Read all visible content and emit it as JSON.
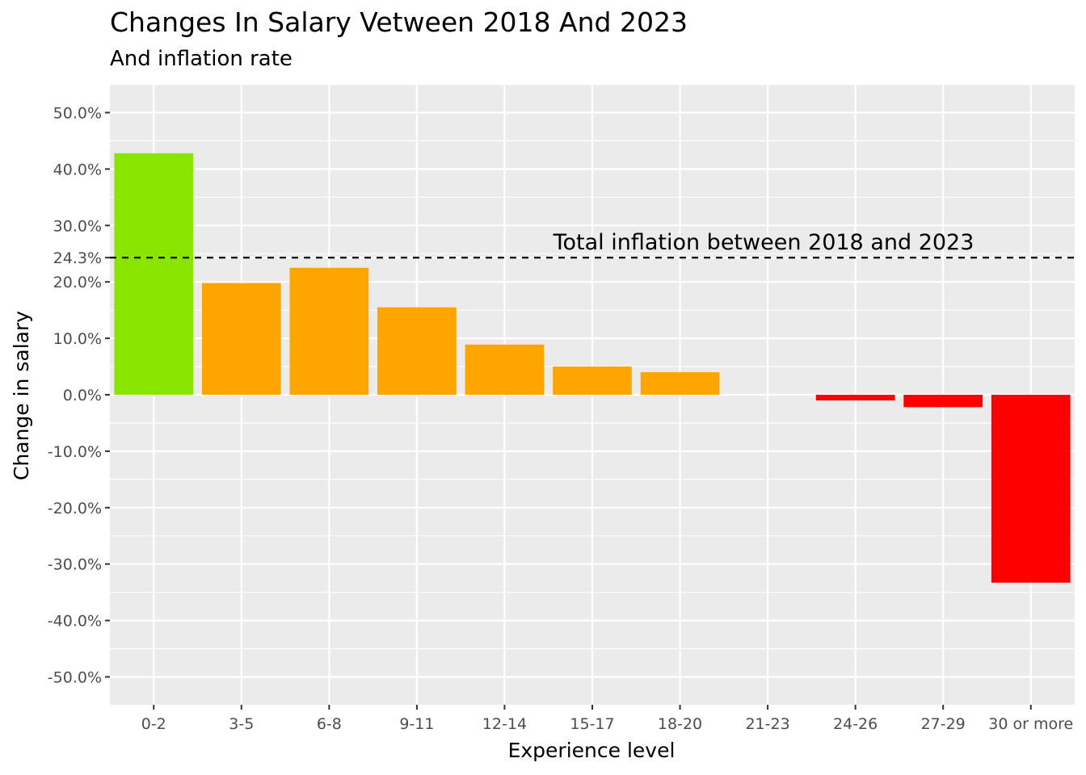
{
  "chart_data": {
    "type": "bar",
    "title": "Changes In Salary Vetween 2018 And 2023",
    "subtitle": "And inflation rate",
    "xlabel": "Experience level",
    "ylabel": "Change in salary",
    "ylim": [
      -55,
      55
    ],
    "grid": true,
    "legend": "none",
    "categories": [
      "0-2",
      "3-5",
      "6-8",
      "9-11",
      "12-14",
      "15-17",
      "18-20",
      "21-23",
      "24-26",
      "27-29",
      "30 or more"
    ],
    "values": [
      42.8,
      19.8,
      22.5,
      15.5,
      8.9,
      5.0,
      4.0,
      0.0,
      -1.0,
      -2.2,
      -33.3
    ],
    "bar_colors": [
      "#8ae600",
      "#ffa500",
      "#ffa500",
      "#ffa500",
      "#ffa500",
      "#ffa500",
      "#ffa500",
      "#ffa500",
      "#ff0000",
      "#ff0000",
      "#ff0000"
    ],
    "y_ticks": [
      {
        "value": 50,
        "label": "50.0%"
      },
      {
        "value": 40,
        "label": "40.0%"
      },
      {
        "value": 30,
        "label": "30.0%"
      },
      {
        "value": 24.3,
        "label": "24.3%"
      },
      {
        "value": 20,
        "label": "20.0%"
      },
      {
        "value": 10,
        "label": "10.0%"
      },
      {
        "value": 0,
        "label": "0.0%"
      },
      {
        "value": -10,
        "label": "-10.0%"
      },
      {
        "value": -20,
        "label": "-20.0%"
      },
      {
        "value": -30,
        "label": "-30.0%"
      },
      {
        "value": -40,
        "label": "-40.0%"
      },
      {
        "value": -50,
        "label": "-50.0%"
      }
    ],
    "reference_line": {
      "value": 24.3,
      "style": "dashed",
      "label": "Total inflation between 2018 and 2023"
    },
    "colors": {
      "panel_background": "#ebebeb",
      "grid": "#ffffff",
      "reference_line": "#000000"
    }
  }
}
